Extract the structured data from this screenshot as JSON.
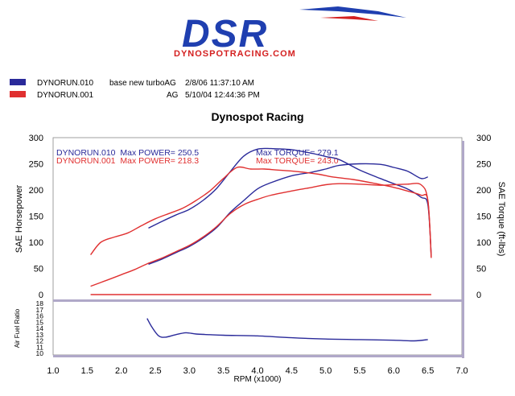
{
  "logo": {
    "text": "DSR",
    "url_text": "DYNOSPOTRACING.COM"
  },
  "runs": [
    {
      "name": "DYNORUN.010",
      "note": "base new turboAG",
      "datetime": "2/8/06 11:37:10 AM",
      "color": "#2a2a9a"
    },
    {
      "name": "DYNORUN.001",
      "note": "AG",
      "datetime": "5/10/04 12:44:36 PM",
      "color": "#e03030"
    }
  ],
  "colors": {
    "run1": "#2a2a9a",
    "run2": "#e03030",
    "axis_bar": "#b0a8c8",
    "logo_blue": "#1f3fb0",
    "logo_red": "#d42020"
  },
  "chart_data": {
    "type": "line",
    "title": "Dynospot Racing",
    "xlabel": "RPM (x1000)",
    "ylabel_left": "SAE Horsepower",
    "ylabel_right": "SAE Torque (ft-lbs)",
    "ylabel_afr": "Air Fuel Ratio",
    "xlim": [
      1.0,
      7.0
    ],
    "xticks": [
      "1.0",
      "1.5",
      "2.0",
      "2.5",
      "3.0",
      "3.5",
      "4.0",
      "4.5",
      "5.0",
      "5.5",
      "6.0",
      "6.5",
      "7.0"
    ],
    "ylim": [
      0,
      300
    ],
    "yticks": [
      "0",
      "50",
      "100",
      "150",
      "200",
      "250",
      "300"
    ],
    "afr_ylim": [
      10,
      18
    ],
    "afr_yticks": [
      "18",
      "17",
      "16",
      "15",
      "14",
      "13",
      "12",
      "11",
      "10"
    ],
    "annotations": [
      {
        "text": "DYNORUN.010  Max POWER= 250.5",
        "color": "#2a2a9a"
      },
      {
        "text": "Max TORQUE= 279.1",
        "color": "#2a2a9a"
      },
      {
        "text": "DYNORUN.001  Max POWER= 218.3",
        "color": "#e03030"
      },
      {
        "text": "Max TORQUE= 243.0",
        "color": "#e03030"
      }
    ],
    "series": [
      {
        "name": "DYNORUN.010 Power",
        "color": "#2a2a9a",
        "x": [
          2.4,
          2.6,
          2.8,
          3.0,
          3.2,
          3.4,
          3.6,
          3.8,
          4.0,
          4.2,
          4.5,
          4.8,
          5.0,
          5.2,
          5.5,
          5.8,
          6.0,
          6.2,
          6.4,
          6.5
        ],
        "y": [
          58,
          68,
          80,
          92,
          108,
          128,
          157,
          180,
          202,
          214,
          227,
          234,
          240,
          247,
          250,
          249,
          243,
          236,
          222,
          225
        ]
      },
      {
        "name": "DYNORUN.010 Torque",
        "color": "#2a2a9a",
        "x": [
          2.4,
          2.6,
          2.8,
          3.0,
          3.2,
          3.4,
          3.6,
          3.8,
          4.0,
          4.2,
          4.5,
          4.8,
          5.0,
          5.2,
          5.5,
          5.8,
          6.0,
          6.2,
          6.4,
          6.5,
          6.55
        ],
        "y": [
          127,
          140,
          152,
          163,
          180,
          203,
          235,
          265,
          278,
          279,
          277,
          270,
          264,
          258,
          238,
          222,
          212,
          202,
          186,
          172,
          75
        ]
      },
      {
        "name": "DYNORUN.001 Power",
        "color": "#e03030",
        "x": [
          1.55,
          1.8,
          2.0,
          2.2,
          2.4,
          2.6,
          2.8,
          3.0,
          3.2,
          3.4,
          3.6,
          3.8,
          4.0,
          4.2,
          4.5,
          4.8,
          5.0,
          5.2,
          5.5,
          5.8,
          6.0,
          6.2,
          6.4,
          6.5,
          6.55
        ],
        "y": [
          16,
          28,
          38,
          48,
          60,
          70,
          82,
          94,
          110,
          130,
          155,
          172,
          182,
          190,
          198,
          205,
          210,
          212,
          211,
          209,
          210,
          211,
          210,
          180,
          72
        ]
      },
      {
        "name": "DYNORUN.001 Torque",
        "color": "#e03030",
        "x": [
          1.55,
          1.7,
          1.9,
          2.1,
          2.3,
          2.5,
          2.7,
          2.9,
          3.1,
          3.3,
          3.5,
          3.7,
          3.9,
          4.1,
          4.3,
          4.6,
          4.9,
          5.1,
          5.4,
          5.7,
          6.0,
          6.2,
          6.4,
          6.5,
          6.55
        ],
        "y": [
          76,
          100,
          110,
          118,
          132,
          145,
          155,
          165,
          180,
          198,
          222,
          243,
          240,
          240,
          238,
          235,
          230,
          225,
          220,
          213,
          205,
          198,
          190,
          180,
          70
        ]
      },
      {
        "name": "DYNORUN.001 Baseline",
        "color": "#e03030",
        "x": [
          1.55,
          6.55
        ],
        "y": [
          0,
          0
        ]
      }
    ],
    "afr_series": [
      {
        "name": "DYNORUN.010 AFR",
        "color": "#2a2a9a",
        "x": [
          2.38,
          2.45,
          2.55,
          2.65,
          2.8,
          2.95,
          3.1,
          3.3,
          3.5,
          4.0,
          4.5,
          5.0,
          5.5,
          6.0,
          6.3,
          6.5
        ],
        "y": [
          15.6,
          14.2,
          12.8,
          12.6,
          13.0,
          13.3,
          13.1,
          13.0,
          12.9,
          12.8,
          12.5,
          12.3,
          12.2,
          12.1,
          12.0,
          12.2
        ]
      }
    ]
  }
}
